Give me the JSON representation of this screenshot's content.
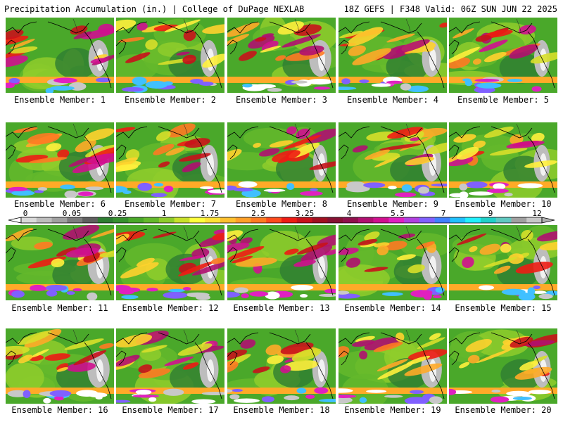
{
  "header": {
    "title": "Precipitation Accumulation (in.) | College of DuPage NEXLAB",
    "run": "18Z GEFS | F348 Valid: 06Z SUN JUN 22 2025"
  },
  "colorbar": {
    "tick_labels": [
      "0",
      "0.05",
      "0.25",
      "1",
      "1.75",
      "2.5",
      "3.25",
      "4",
      "5.5",
      "7",
      "9",
      "12"
    ],
    "colors": [
      "#d9d9d9",
      "#bdbdbd",
      "#a0a0a0",
      "#7c7c7c",
      "#5f5f5f",
      "#2e7d32",
      "#37912f",
      "#4aa82a",
      "#64b92c",
      "#8fcc2b",
      "#c8e02a",
      "#ffff3c",
      "#ffe135",
      "#ffc02e",
      "#ff9f28",
      "#ff7a22",
      "#ff4a1c",
      "#ee1c14",
      "#c8121b",
      "#a01020",
      "#861133",
      "#90104c",
      "#b01070",
      "#d0108f",
      "#e020c0",
      "#b040e0",
      "#8060ff",
      "#4080ff",
      "#20c0ff",
      "#20f0ff",
      "#20d0c8",
      "#60c8c0",
      "#a0a0a0",
      "#c8c8c8"
    ]
  },
  "panels": [
    {
      "caption": "Ensemble Member: 1"
    },
    {
      "caption": "Ensemble Member: 2"
    },
    {
      "caption": "Ensemble Member: 3"
    },
    {
      "caption": "Ensemble Member: 4"
    },
    {
      "caption": "Ensemble Member: 5"
    },
    {
      "caption": "Ensemble Member: 6"
    },
    {
      "caption": "Ensemble Member: 7"
    },
    {
      "caption": "Ensemble Member: 8"
    },
    {
      "caption": "Ensemble Member: 9"
    },
    {
      "caption": "Ensemble Member: 10"
    },
    {
      "caption": "Ensemble Member: 11"
    },
    {
      "caption": "Ensemble Member: 12"
    },
    {
      "caption": "Ensemble Member: 13"
    },
    {
      "caption": "Ensemble Member: 14"
    },
    {
      "caption": "Ensemble Member: 15"
    },
    {
      "caption": "Ensemble Member: 16"
    },
    {
      "caption": "Ensemble Member: 17"
    },
    {
      "caption": "Ensemble Member: 18"
    },
    {
      "caption": "Ensemble Member: 19"
    },
    {
      "caption": "Ensemble Member: 20"
    }
  ]
}
